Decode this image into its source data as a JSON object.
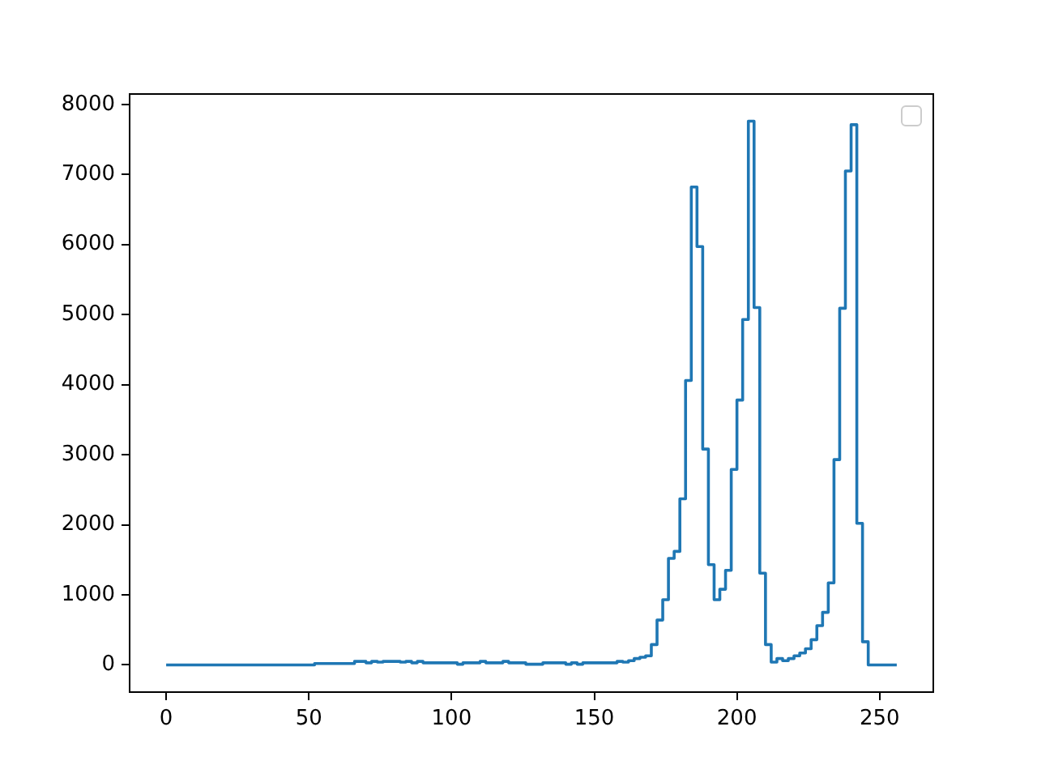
{
  "chart_data": {
    "type": "step",
    "x": [
      0,
      2,
      4,
      6,
      8,
      10,
      12,
      14,
      16,
      18,
      20,
      22,
      24,
      26,
      28,
      30,
      32,
      34,
      36,
      38,
      40,
      42,
      44,
      46,
      48,
      50,
      52,
      54,
      56,
      58,
      60,
      62,
      64,
      66,
      68,
      70,
      72,
      74,
      76,
      78,
      80,
      82,
      84,
      86,
      88,
      90,
      92,
      94,
      96,
      98,
      100,
      102,
      104,
      106,
      108,
      110,
      112,
      114,
      116,
      118,
      120,
      122,
      124,
      126,
      128,
      130,
      132,
      134,
      136,
      138,
      140,
      142,
      144,
      146,
      148,
      150,
      152,
      154,
      156,
      158,
      160,
      162,
      164,
      166,
      168,
      170,
      172,
      174,
      176,
      178,
      180,
      182,
      184,
      186,
      188,
      190,
      192,
      194,
      196,
      198,
      200,
      202,
      204,
      206,
      208,
      210,
      212,
      214,
      216,
      218,
      220,
      222,
      224,
      226,
      228,
      230,
      232,
      234,
      236,
      238,
      240,
      242,
      244,
      246,
      248,
      250,
      252,
      254,
      256
    ],
    "series": [
      {
        "color": "#1f77b4",
        "values": [
          0,
          0,
          0,
          0,
          0,
          0,
          0,
          0,
          0,
          0,
          0,
          0,
          0,
          0,
          0,
          0,
          0,
          0,
          0,
          0,
          0,
          0,
          0,
          0,
          0,
          0,
          0,
          20,
          20,
          20,
          20,
          20,
          20,
          20,
          50,
          50,
          30,
          50,
          40,
          50,
          50,
          50,
          40,
          50,
          30,
          50,
          30,
          30,
          30,
          30,
          30,
          30,
          10,
          30,
          30,
          30,
          50,
          30,
          30,
          30,
          50,
          30,
          30,
          30,
          10,
          10,
          10,
          30,
          30,
          30,
          30,
          10,
          30,
          10,
          30,
          30,
          30,
          30,
          30,
          30,
          50,
          40,
          60,
          90,
          110,
          130,
          290,
          640,
          930,
          1520,
          1620,
          2370,
          4060,
          6820,
          5970,
          3080,
          1430,
          930,
          1080,
          1350,
          2790,
          3780,
          4930,
          7760,
          5100,
          1310,
          290,
          40,
          90,
          60,
          90,
          130,
          170,
          230,
          360,
          560,
          750,
          1170,
          2930,
          5090,
          7050,
          7710,
          2020,
          330,
          0,
          0,
          0,
          0,
          0
        ]
      }
    ],
    "xlim": [
      -12.8,
      268.8
    ],
    "xticks": [
      0,
      50,
      100,
      150,
      200,
      250
    ],
    "ylim": [
      -388,
      8148
    ],
    "yticks": [
      0,
      1000,
      2000,
      3000,
      4000,
      5000,
      6000,
      7000,
      8000
    ],
    "grid": false
  }
}
